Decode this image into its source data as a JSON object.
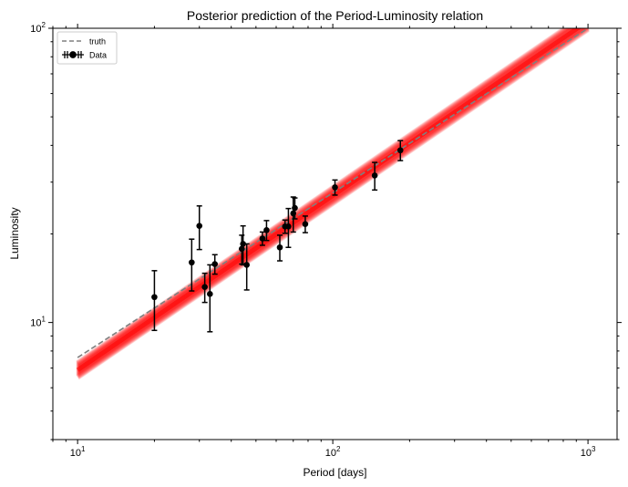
{
  "chart_data": {
    "type": "scatter",
    "title": "Posterior prediction of the Period-Luminosity relation",
    "xlabel": "Period [days]",
    "ylabel": "Luminosity",
    "xscale": "log",
    "yscale": "log",
    "xlim": [
      8,
      1300
    ],
    "ylim": [
      4,
      100
    ],
    "x_ticks": [
      {
        "value": 10,
        "label": "10",
        "exp": "1"
      },
      {
        "value": 100,
        "label": "10",
        "exp": "2"
      },
      {
        "value": 1000,
        "label": "10",
        "exp": "3"
      }
    ],
    "y_ticks": [
      {
        "value": 10,
        "label": "10",
        "exp": "1"
      },
      {
        "value": 100,
        "label": "10",
        "exp": "2"
      }
    ],
    "grid": false,
    "legend_position": "top-left",
    "legend": [
      {
        "label": "truth",
        "style": "dashed-line",
        "color": "#808080"
      },
      {
        "label": "Data",
        "style": "errorbar-marker",
        "color": "#000000"
      }
    ],
    "truth_line": {
      "label": "truth",
      "color": "#808080",
      "x": [
        10,
        1000
      ],
      "y": [
        7.6,
        100
      ]
    },
    "posterior_band": {
      "color": "#ff0000",
      "x_range": [
        10,
        1000
      ],
      "y_low_at_x_min": 6.5,
      "y_high_at_x_min": 7.3,
      "y_low_at_x_max": 99,
      "y_high_at_x_max": 113,
      "samples": 40
    },
    "series": [
      {
        "name": "Data",
        "color": "#000000",
        "points": [
          {
            "x": 20,
            "y": 12.2,
            "err": 2.8
          },
          {
            "x": 28,
            "y": 16.0,
            "err": 3.2
          },
          {
            "x": 30,
            "y": 21.3,
            "err": 3.6
          },
          {
            "x": 31.5,
            "y": 13.2,
            "err": 1.5
          },
          {
            "x": 33,
            "y": 12.5,
            "err": 3.2
          },
          {
            "x": 34.5,
            "y": 15.8,
            "err": 1.2
          },
          {
            "x": 44,
            "y": 17.8,
            "err": 2.0
          },
          {
            "x": 44.5,
            "y": 18.5,
            "err": 2.8
          },
          {
            "x": 46,
            "y": 15.7,
            "err": 2.8
          },
          {
            "x": 53,
            "y": 19.3,
            "err": 1.0
          },
          {
            "x": 55,
            "y": 20.6,
            "err": 1.6
          },
          {
            "x": 62,
            "y": 18.0,
            "err": 1.8
          },
          {
            "x": 65,
            "y": 21.2,
            "err": 1.1
          },
          {
            "x": 67,
            "y": 21.2,
            "err": 3.2
          },
          {
            "x": 70,
            "y": 23.5,
            "err": 3.2
          },
          {
            "x": 71,
            "y": 24.5,
            "err": 2.0
          },
          {
            "x": 78,
            "y": 21.6,
            "err": 1.4
          },
          {
            "x": 102,
            "y": 28.8,
            "err": 1.7
          },
          {
            "x": 146,
            "y": 31.6,
            "err": 3.4
          },
          {
            "x": 184,
            "y": 38.5,
            "err": 3.0
          }
        ]
      }
    ]
  }
}
